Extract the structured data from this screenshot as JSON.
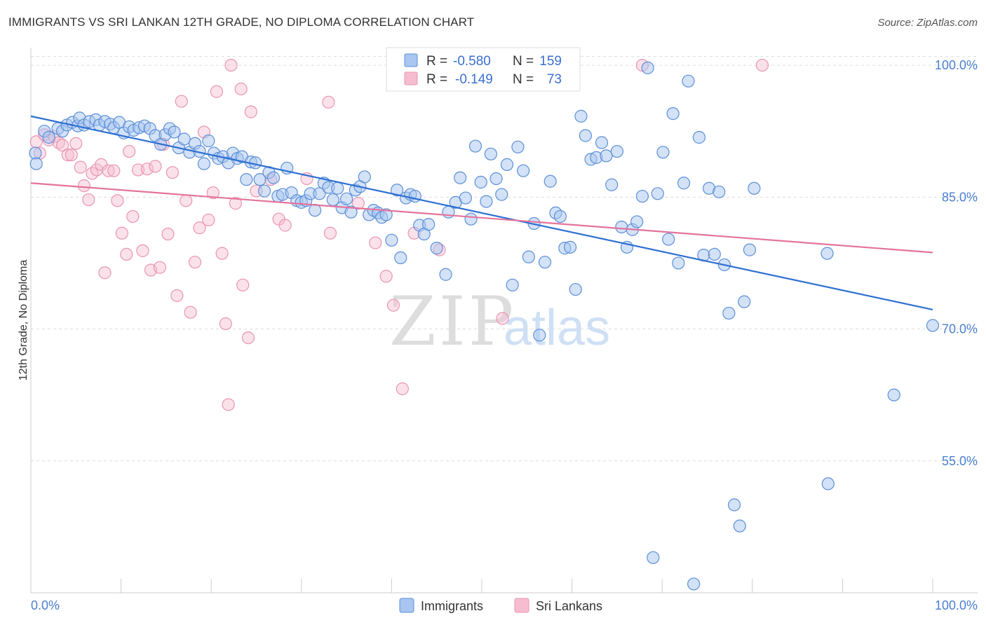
{
  "title": "IMMIGRANTS VS SRI LANKAN 12TH GRADE, NO DIPLOMA CORRELATION CHART",
  "source": "Source: ZipAtlas.com",
  "watermark": {
    "zip": "ZIP",
    "atlas": "atlas"
  },
  "colors": {
    "blue_fill": "#a8c6f0",
    "blue_stroke": "#5b8fd8",
    "blue_line": "#2d6fd2",
    "pink_fill": "#f6bcd0",
    "pink_stroke": "#e995b2",
    "pink_line": "#e4739c",
    "grid": "#dddddd",
    "tick_text": "#4a7fd0"
  },
  "legend": {
    "rows": [
      {
        "r_label": "R =",
        "r_value": "-0.580",
        "n_label": "N =",
        "n_value": "159"
      },
      {
        "r_label": "R =",
        "r_value": "-0.149",
        "n_label": "N =",
        "n_value": "73"
      }
    ]
  },
  "chart_data": {
    "type": "scatter",
    "xlabel": "",
    "ylabel": "12th Grade, No Diploma",
    "xlim": [
      0,
      100
    ],
    "ylim": [
      40,
      102
    ],
    "x_tick_labels": [
      "0.0%",
      "100.0%"
    ],
    "y_ticks": [
      55,
      70,
      85,
      100
    ],
    "y_tick_labels": [
      "55.0%",
      "70.0%",
      "85.0%",
      "100.0%"
    ],
    "grid": true,
    "legend_position": "top-center",
    "series": [
      {
        "name": "Immigrants",
        "r": -0.58,
        "n": 159,
        "trend": {
          "x": [
            0,
            100
          ],
          "y": [
            94.2,
            72.2
          ]
        },
        "points": [
          [
            0.5,
            90.0
          ],
          [
            0.6,
            88.8
          ],
          [
            1.5,
            92.5
          ],
          [
            2.0,
            91.8
          ],
          [
            3.0,
            92.8
          ],
          [
            3.5,
            92.5
          ],
          [
            4.0,
            93.2
          ],
          [
            4.6,
            93.5
          ],
          [
            5.2,
            93.1
          ],
          [
            5.4,
            94.0
          ],
          [
            5.9,
            93.2
          ],
          [
            6.5,
            93.6
          ],
          [
            7.2,
            93.8
          ],
          [
            7.6,
            93.2
          ],
          [
            8.2,
            93.6
          ],
          [
            8.8,
            93.3
          ],
          [
            9.2,
            92.9
          ],
          [
            9.8,
            93.5
          ],
          [
            10.3,
            92.3
          ],
          [
            10.9,
            93.0
          ],
          [
            11.4,
            92.6
          ],
          [
            12.0,
            92.9
          ],
          [
            12.6,
            93.1
          ],
          [
            13.2,
            92.8
          ],
          [
            13.8,
            92.0
          ],
          [
            14.4,
            91.0
          ],
          [
            14.9,
            92.1
          ],
          [
            15.4,
            92.8
          ],
          [
            15.9,
            92.4
          ],
          [
            16.4,
            90.6
          ],
          [
            17.0,
            91.6
          ],
          [
            17.6,
            90.1
          ],
          [
            18.2,
            91.1
          ],
          [
            18.7,
            90.2
          ],
          [
            19.2,
            88.8
          ],
          [
            19.7,
            91.4
          ],
          [
            20.3,
            90.0
          ],
          [
            20.8,
            89.4
          ],
          [
            21.3,
            89.6
          ],
          [
            21.9,
            88.9
          ],
          [
            22.4,
            90.0
          ],
          [
            22.9,
            89.4
          ],
          [
            23.4,
            89.6
          ],
          [
            23.9,
            87.0
          ],
          [
            24.4,
            89.0
          ],
          [
            24.9,
            88.9
          ],
          [
            25.4,
            87.0
          ],
          [
            25.9,
            85.7
          ],
          [
            26.4,
            87.8
          ],
          [
            26.9,
            87.2
          ],
          [
            27.4,
            85.1
          ],
          [
            27.9,
            85.3
          ],
          [
            28.4,
            88.3
          ],
          [
            28.9,
            85.5
          ],
          [
            29.5,
            84.6
          ],
          [
            30.0,
            84.4
          ],
          [
            30.5,
            84.6
          ],
          [
            31.0,
            85.4
          ],
          [
            31.5,
            83.5
          ],
          [
            32.0,
            85.4
          ],
          [
            32.5,
            86.6
          ],
          [
            33.0,
            86.1
          ],
          [
            33.5,
            84.7
          ],
          [
            34.0,
            86.0
          ],
          [
            34.5,
            83.8
          ],
          [
            35.0,
            84.8
          ],
          [
            35.5,
            83.3
          ],
          [
            36.0,
            85.8
          ],
          [
            36.5,
            86.2
          ],
          [
            37.0,
            87.3
          ],
          [
            37.5,
            83.0
          ],
          [
            38.0,
            83.5
          ],
          [
            38.5,
            83.2
          ],
          [
            38.9,
            82.7
          ],
          [
            39.4,
            83.0
          ],
          [
            40.0,
            80.1
          ],
          [
            40.6,
            85.8
          ],
          [
            41.0,
            78.1
          ],
          [
            41.6,
            84.9
          ],
          [
            42.1,
            85.3
          ],
          [
            42.6,
            85.1
          ],
          [
            43.1,
            81.8
          ],
          [
            43.6,
            80.8
          ],
          [
            44.1,
            81.9
          ],
          [
            45.0,
            79.2
          ],
          [
            46.0,
            76.2
          ],
          [
            46.3,
            83.3
          ],
          [
            47.1,
            84.4
          ],
          [
            47.6,
            87.2
          ],
          [
            48.2,
            84.9
          ],
          [
            48.8,
            82.5
          ],
          [
            49.3,
            90.8
          ],
          [
            49.9,
            86.7
          ],
          [
            50.5,
            84.5
          ],
          [
            51.0,
            89.9
          ],
          [
            51.6,
            87.1
          ],
          [
            52.2,
            85.3
          ],
          [
            52.8,
            88.7
          ],
          [
            53.4,
            75.0
          ],
          [
            54.0,
            90.7
          ],
          [
            54.6,
            88.0
          ],
          [
            55.2,
            78.2
          ],
          [
            55.8,
            82.0
          ],
          [
            56.4,
            69.3
          ],
          [
            57.0,
            77.6
          ],
          [
            57.6,
            86.8
          ],
          [
            58.2,
            83.2
          ],
          [
            58.7,
            82.8
          ],
          [
            59.2,
            79.2
          ],
          [
            59.8,
            79.3
          ],
          [
            60.4,
            74.5
          ],
          [
            61.0,
            94.2
          ],
          [
            61.5,
            92.0
          ],
          [
            62.1,
            89.3
          ],
          [
            62.7,
            89.5
          ],
          [
            63.3,
            91.2
          ],
          [
            63.8,
            89.7
          ],
          [
            64.4,
            86.4
          ],
          [
            65.0,
            90.2
          ],
          [
            65.5,
            81.6
          ],
          [
            66.1,
            79.3
          ],
          [
            66.7,
            81.3
          ],
          [
            67.2,
            82.2
          ],
          [
            67.8,
            85.1
          ],
          [
            68.4,
            99.7
          ],
          [
            69.0,
            44.0
          ],
          [
            69.5,
            85.4
          ],
          [
            70.1,
            90.1
          ],
          [
            70.7,
            80.2
          ],
          [
            71.2,
            94.5
          ],
          [
            71.8,
            77.5
          ],
          [
            72.4,
            86.6
          ],
          [
            72.9,
            98.2
          ],
          [
            73.5,
            41.0
          ],
          [
            74.1,
            91.8
          ],
          [
            74.6,
            78.4
          ],
          [
            75.2,
            86.0
          ],
          [
            75.8,
            78.5
          ],
          [
            76.3,
            85.6
          ],
          [
            76.9,
            77.3
          ],
          [
            77.4,
            71.8
          ],
          [
            78.0,
            50.0
          ],
          [
            78.6,
            47.6
          ],
          [
            79.1,
            73.1
          ],
          [
            79.7,
            79.0
          ],
          [
            80.2,
            86.0
          ],
          [
            88.3,
            78.6
          ],
          [
            88.4,
            52.4
          ],
          [
            95.7,
            62.5
          ],
          [
            100.0,
            70.4
          ]
        ]
      },
      {
        "name": "Sri Lankans",
        "r": -0.149,
        "n": 73,
        "trend": {
          "x": [
            0,
            100
          ],
          "y": [
            86.6,
            78.7
          ]
        },
        "points": [
          [
            0.6,
            91.3
          ],
          [
            1.0,
            90.0
          ],
          [
            1.5,
            92.1
          ],
          [
            2.0,
            91.5
          ],
          [
            2.6,
            91.9
          ],
          [
            3.1,
            91.2
          ],
          [
            3.5,
            90.9
          ],
          [
            4.1,
            89.8
          ],
          [
            4.5,
            89.8
          ],
          [
            5.0,
            91.1
          ],
          [
            5.5,
            88.4
          ],
          [
            5.9,
            86.3
          ],
          [
            6.4,
            84.7
          ],
          [
            6.8,
            87.7
          ],
          [
            7.3,
            88.1
          ],
          [
            7.8,
            88.7
          ],
          [
            8.2,
            76.4
          ],
          [
            8.6,
            88.0
          ],
          [
            9.2,
            88.0
          ],
          [
            9.6,
            84.6
          ],
          [
            10.1,
            80.9
          ],
          [
            10.6,
            78.5
          ],
          [
            10.9,
            90.2
          ],
          [
            11.3,
            82.8
          ],
          [
            11.9,
            88.1
          ],
          [
            12.4,
            78.9
          ],
          [
            12.9,
            88.2
          ],
          [
            13.3,
            76.7
          ],
          [
            13.8,
            88.5
          ],
          [
            14.3,
            77.0
          ],
          [
            14.7,
            91.0
          ],
          [
            15.2,
            80.8
          ],
          [
            15.7,
            87.8
          ],
          [
            16.2,
            73.8
          ],
          [
            16.7,
            95.9
          ],
          [
            17.2,
            84.6
          ],
          [
            17.7,
            71.9
          ],
          [
            18.2,
            77.6
          ],
          [
            18.7,
            81.5
          ],
          [
            19.2,
            92.4
          ],
          [
            19.7,
            82.4
          ],
          [
            20.2,
            85.5
          ],
          [
            20.6,
            97.0
          ],
          [
            21.2,
            78.6
          ],
          [
            21.6,
            70.6
          ],
          [
            21.9,
            61.4
          ],
          [
            22.2,
            100.0
          ],
          [
            22.7,
            84.3
          ],
          [
            23.3,
            97.3
          ],
          [
            23.5,
            75.0
          ],
          [
            24.1,
            69.0
          ],
          [
            24.4,
            94.7
          ],
          [
            25.0,
            85.7
          ],
          [
            26.6,
            87.0
          ],
          [
            27.5,
            82.5
          ],
          [
            28.2,
            81.8
          ],
          [
            30.6,
            87.1
          ],
          [
            33.2,
            80.9
          ],
          [
            33.0,
            95.8
          ],
          [
            36.3,
            84.3
          ],
          [
            38.2,
            79.8
          ],
          [
            39.4,
            76.0
          ],
          [
            40.2,
            72.7
          ],
          [
            41.2,
            63.2
          ],
          [
            42.5,
            80.9
          ],
          [
            45.3,
            79.0
          ],
          [
            52.3,
            71.2
          ],
          [
            67.8,
            100.0
          ],
          [
            81.1,
            100.0
          ]
        ]
      }
    ]
  },
  "bottom_legend": [
    {
      "label": "Immigrants"
    },
    {
      "label": "Sri Lankans"
    }
  ]
}
